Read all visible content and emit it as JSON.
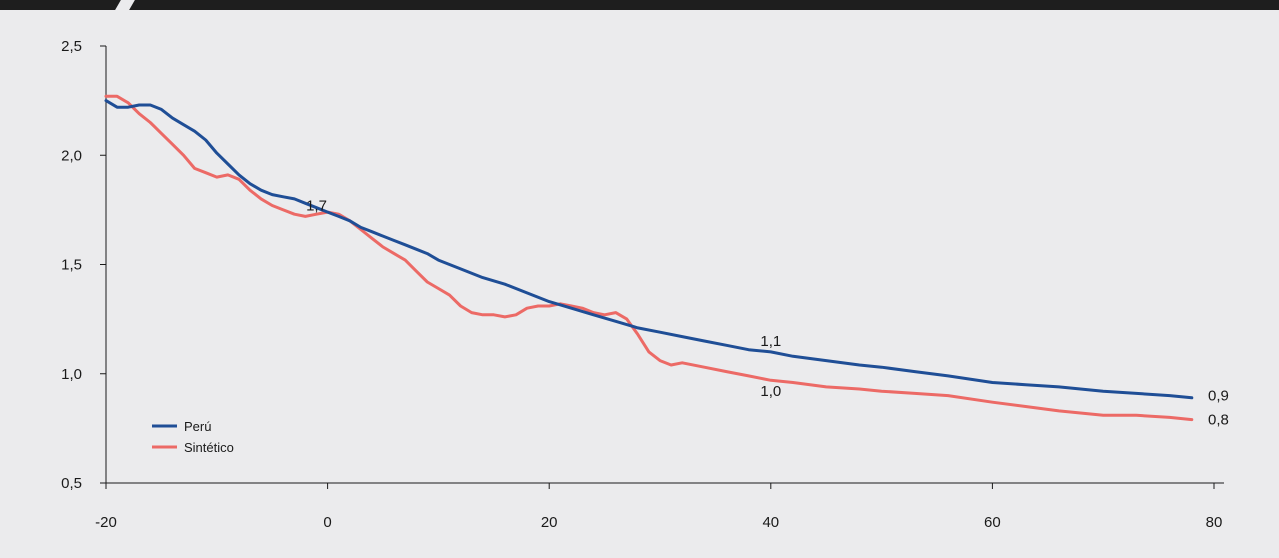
{
  "chart_data": {
    "type": "line",
    "xlim": [
      -20,
      80
    ],
    "ylim": [
      0.5,
      2.5
    ],
    "x_ticks": [
      "-20",
      "0",
      "20",
      "40",
      "60",
      "80"
    ],
    "y_ticks": [
      "0,5",
      "1,0",
      "1,5",
      "2,0",
      "2,5"
    ],
    "grid": false,
    "legend_position": "bottom-left",
    "colors": {
      "peru": "#1f4e96",
      "sintetico": "#ec6a66",
      "axis": "#1a1a1a"
    },
    "series": [
      {
        "name": "Perú",
        "color": "#1f4e96",
        "points": [
          [
            -20,
            2.25
          ],
          [
            -19,
            2.22
          ],
          [
            -18,
            2.22
          ],
          [
            -17,
            2.23
          ],
          [
            -16,
            2.23
          ],
          [
            -15,
            2.21
          ],
          [
            -14,
            2.17
          ],
          [
            -13,
            2.14
          ],
          [
            -12,
            2.11
          ],
          [
            -11,
            2.07
          ],
          [
            -10,
            2.01
          ],
          [
            -9,
            1.96
          ],
          [
            -8,
            1.91
          ],
          [
            -7,
            1.87
          ],
          [
            -6,
            1.84
          ],
          [
            -5,
            1.82
          ],
          [
            -4,
            1.81
          ],
          [
            -3,
            1.8
          ],
          [
            -2,
            1.78
          ],
          [
            -1,
            1.76
          ],
          [
            0,
            1.74
          ],
          [
            1,
            1.72
          ],
          [
            2,
            1.7
          ],
          [
            3,
            1.67
          ],
          [
            4,
            1.65
          ],
          [
            5,
            1.63
          ],
          [
            6,
            1.61
          ],
          [
            7,
            1.59
          ],
          [
            8,
            1.57
          ],
          [
            9,
            1.55
          ],
          [
            10,
            1.52
          ],
          [
            12,
            1.48
          ],
          [
            14,
            1.44
          ],
          [
            16,
            1.41
          ],
          [
            18,
            1.37
          ],
          [
            20,
            1.33
          ],
          [
            22,
            1.3
          ],
          [
            24,
            1.27
          ],
          [
            26,
            1.24
          ],
          [
            28,
            1.21
          ],
          [
            30,
            1.19
          ],
          [
            32,
            1.17
          ],
          [
            34,
            1.15
          ],
          [
            36,
            1.13
          ],
          [
            38,
            1.11
          ],
          [
            40,
            1.1
          ],
          [
            42,
            1.08
          ],
          [
            45,
            1.06
          ],
          [
            48,
            1.04
          ],
          [
            50,
            1.03
          ],
          [
            53,
            1.01
          ],
          [
            56,
            0.99
          ],
          [
            60,
            0.96
          ],
          [
            63,
            0.95
          ],
          [
            66,
            0.94
          ],
          [
            70,
            0.92
          ],
          [
            73,
            0.91
          ],
          [
            76,
            0.9
          ],
          [
            78,
            0.89
          ]
        ]
      },
      {
        "name": "Sintético",
        "color": "#ec6a66",
        "points": [
          [
            -20,
            2.27
          ],
          [
            -19,
            2.27
          ],
          [
            -18,
            2.24
          ],
          [
            -17,
            2.19
          ],
          [
            -16,
            2.15
          ],
          [
            -15,
            2.1
          ],
          [
            -14,
            2.05
          ],
          [
            -13,
            2.0
          ],
          [
            -12,
            1.94
          ],
          [
            -11,
            1.92
          ],
          [
            -10,
            1.9
          ],
          [
            -9,
            1.91
          ],
          [
            -8,
            1.89
          ],
          [
            -7,
            1.84
          ],
          [
            -6,
            1.8
          ],
          [
            -5,
            1.77
          ],
          [
            -4,
            1.75
          ],
          [
            -3,
            1.73
          ],
          [
            -2,
            1.72
          ],
          [
            -1,
            1.73
          ],
          [
            0,
            1.74
          ],
          [
            1,
            1.73
          ],
          [
            2,
            1.7
          ],
          [
            3,
            1.66
          ],
          [
            4,
            1.62
          ],
          [
            5,
            1.58
          ],
          [
            6,
            1.55
          ],
          [
            7,
            1.52
          ],
          [
            8,
            1.47
          ],
          [
            9,
            1.42
          ],
          [
            10,
            1.39
          ],
          [
            11,
            1.36
          ],
          [
            12,
            1.31
          ],
          [
            13,
            1.28
          ],
          [
            14,
            1.27
          ],
          [
            15,
            1.27
          ],
          [
            16,
            1.26
          ],
          [
            17,
            1.27
          ],
          [
            18,
            1.3
          ],
          [
            19,
            1.31
          ],
          [
            20,
            1.31
          ],
          [
            21,
            1.32
          ],
          [
            22,
            1.31
          ],
          [
            23,
            1.3
          ],
          [
            24,
            1.28
          ],
          [
            25,
            1.27
          ],
          [
            26,
            1.28
          ],
          [
            27,
            1.25
          ],
          [
            28,
            1.18
          ],
          [
            29,
            1.1
          ],
          [
            30,
            1.06
          ],
          [
            31,
            1.04
          ],
          [
            32,
            1.05
          ],
          [
            34,
            1.03
          ],
          [
            36,
            1.01
          ],
          [
            38,
            0.99
          ],
          [
            40,
            0.97
          ],
          [
            42,
            0.96
          ],
          [
            45,
            0.94
          ],
          [
            48,
            0.93
          ],
          [
            50,
            0.92
          ],
          [
            53,
            0.91
          ],
          [
            56,
            0.9
          ],
          [
            60,
            0.87
          ],
          [
            63,
            0.85
          ],
          [
            66,
            0.83
          ],
          [
            70,
            0.81
          ],
          [
            73,
            0.81
          ],
          [
            76,
            0.8
          ],
          [
            78,
            0.79
          ]
        ]
      }
    ],
    "annotations": [
      {
        "text": "1,7",
        "x": -1,
        "y": 1.77
      },
      {
        "text": "1,1",
        "x": 40,
        "y": 1.15
      },
      {
        "text": "1,0",
        "x": 40,
        "y": 0.92
      },
      {
        "text": "0,9",
        "x": 80,
        "y": 0.9
      },
      {
        "text": "0,8",
        "x": 80,
        "y": 0.79
      }
    ]
  }
}
